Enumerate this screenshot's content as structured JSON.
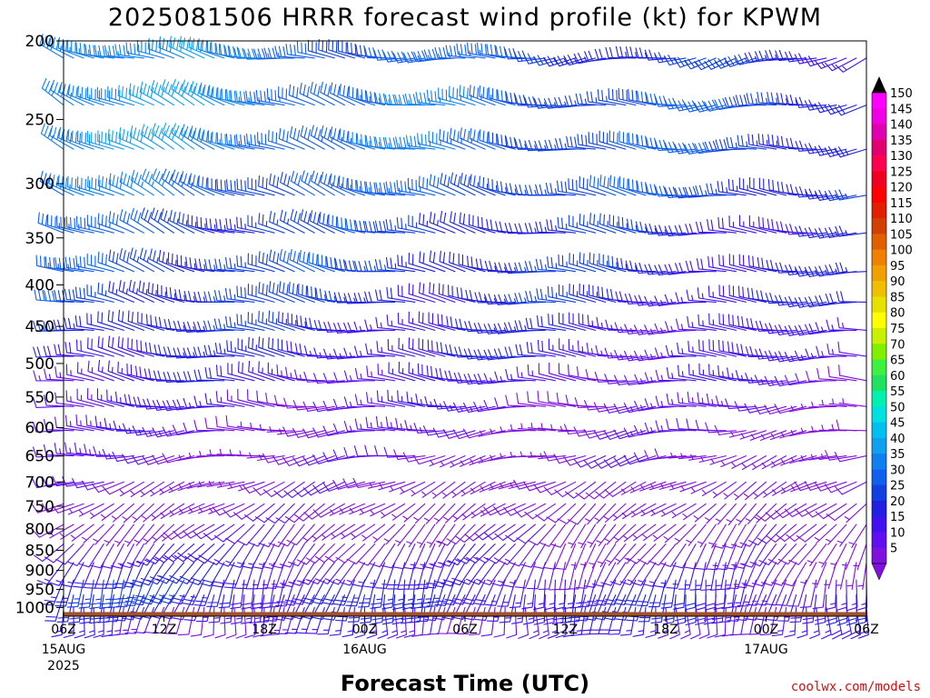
{
  "title": "2025081506 HRRR forecast wind profile (kt) for KPWM",
  "xlabel": "Forecast Time (UTC)",
  "credit": "coolwx.com/models",
  "chart_data": {
    "type": "wind_barb_time_height",
    "title": "2025081506 HRRR forecast wind profile (kt) for KPWM",
    "xlabel": "Forecast Time (UTC)",
    "ylabel": "",
    "y_axis": {
      "type": "pressure_log_reversed",
      "ticks": [
        200,
        250,
        300,
        350,
        400,
        450,
        500,
        550,
        600,
        650,
        700,
        750,
        800,
        850,
        900,
        950,
        1000
      ],
      "range": [
        200,
        1025
      ]
    },
    "x_axis": {
      "range_hours": [
        0,
        48
      ],
      "ticks": [
        {
          "hour": 0,
          "label": "06Z",
          "sub": "15AUG",
          "sub2": "2025"
        },
        {
          "hour": 6,
          "label": "12Z",
          "sub": "",
          "sub2": ""
        },
        {
          "hour": 12,
          "label": "18Z",
          "sub": "",
          "sub2": ""
        },
        {
          "hour": 18,
          "label": "00Z",
          "sub": "16AUG",
          "sub2": ""
        },
        {
          "hour": 24,
          "label": "06Z",
          "sub": "",
          "sub2": ""
        },
        {
          "hour": 30,
          "label": "12Z",
          "sub": "",
          "sub2": ""
        },
        {
          "hour": 36,
          "label": "18Z",
          "sub": "",
          "sub2": ""
        },
        {
          "hour": 42,
          "label": "00Z",
          "sub": "17AUG",
          "sub2": ""
        },
        {
          "hour": 48,
          "label": "06Z",
          "sub": "",
          "sub2": ""
        }
      ]
    },
    "colorbar": {
      "labels": [
        150,
        145,
        140,
        135,
        130,
        125,
        120,
        115,
        110,
        105,
        100,
        95,
        90,
        85,
        80,
        75,
        70,
        65,
        60,
        55,
        50,
        45,
        40,
        35,
        30,
        25,
        20,
        15,
        10,
        5
      ],
      "colors": [
        "#ff00ff",
        "#f000e0",
        "#e000b0",
        "#e00070",
        "#ff0050",
        "#f00020",
        "#ff0000",
        "#e02000",
        "#d04000",
        "#e06000",
        "#f08000",
        "#f0a000",
        "#f0c000",
        "#e8e000",
        "#ffff00",
        "#c8f000",
        "#80f000",
        "#40f040",
        "#20e060",
        "#00f0b0",
        "#00e0e0",
        "#00c0f0",
        "#10a0f0",
        "#1080f0",
        "#1060f0",
        "#1040e0",
        "#2020e0",
        "#4010f0",
        "#6010f0",
        "#8010e0"
      ]
    },
    "barb_hours": [
      0,
      0.6,
      1.2,
      1.8,
      2.4,
      3,
      3.6,
      4.2,
      4.8,
      5.4,
      6,
      6.6,
      7.2,
      7.8,
      8.4,
      9,
      9.6,
      10.2,
      10.8,
      11.4,
      12,
      12.6,
      13.2,
      13.8,
      14.4,
      15,
      15.6,
      16.2,
      16.8,
      17.4,
      18,
      18.6,
      19.2,
      19.8,
      20.4,
      21,
      21.6,
      22.2,
      22.8,
      23.4,
      24,
      24.6,
      25.2,
      25.8,
      26.4,
      27,
      27.6,
      28.2,
      28.8,
      29.4,
      30,
      30.6,
      31.2,
      31.8,
      32.4,
      33,
      33.6,
      34.2,
      34.8,
      35.4,
      36,
      36.6,
      37.2,
      37.8,
      38.4,
      39,
      39.6,
      40.2,
      40.8,
      41.4,
      42,
      42.6,
      43.2,
      43.8,
      44.4,
      45,
      45.6,
      46.2,
      46.8,
      47.4,
      48
    ],
    "levels": [
      {
        "p": 210,
        "dir_start": 290,
        "dir_end": 250,
        "spd_start": 40,
        "spd_end": 20
      },
      {
        "p": 240,
        "dir_start": 300,
        "dir_end": 260,
        "spd_start": 40,
        "spd_end": 25
      },
      {
        "p": 272,
        "dir_start": 300,
        "dir_end": 265,
        "spd_start": 40,
        "spd_end": 25
      },
      {
        "p": 310,
        "dir_start": 300,
        "dir_end": 270,
        "spd_start": 35,
        "spd_end": 25
      },
      {
        "p": 345,
        "dir_start": 295,
        "dir_end": 270,
        "spd_start": 30,
        "spd_end": 20
      },
      {
        "p": 385,
        "dir_start": 290,
        "dir_end": 270,
        "spd_start": 30,
        "spd_end": 20
      },
      {
        "p": 420,
        "dir_start": 285,
        "dir_end": 270,
        "spd_start": 28,
        "spd_end": 18
      },
      {
        "p": 455,
        "dir_start": 280,
        "dir_end": 270,
        "spd_start": 25,
        "spd_end": 15
      },
      {
        "p": 490,
        "dir_start": 280,
        "dir_end": 270,
        "spd_start": 22,
        "spd_end": 15
      },
      {
        "p": 525,
        "dir_start": 280,
        "dir_end": 270,
        "spd_start": 18,
        "spd_end": 12
      },
      {
        "p": 565,
        "dir_start": 275,
        "dir_end": 265,
        "spd_start": 15,
        "spd_end": 10
      },
      {
        "p": 605,
        "dir_start": 270,
        "dir_end": 260,
        "spd_start": 12,
        "spd_end": 8
      },
      {
        "p": 650,
        "dir_start": 265,
        "dir_end": 250,
        "spd_start": 10,
        "spd_end": 6
      },
      {
        "p": 700,
        "dir_start": 250,
        "dir_end": 240,
        "spd_start": 8,
        "spd_end": 5
      },
      {
        "p": 745,
        "dir_start": 240,
        "dir_end": 230,
        "spd_start": 7,
        "spd_end": 5
      },
      {
        "p": 790,
        "dir_start": 230,
        "dir_end": 220,
        "spd_start": 8,
        "spd_end": 6
      },
      {
        "p": 835,
        "dir_start": 220,
        "dir_end": 210,
        "spd_start": 15,
        "spd_end": 8
      },
      {
        "p": 880,
        "dir_start": 210,
        "dir_end": 200,
        "spd_start": 20,
        "spd_end": 10
      },
      {
        "p": 925,
        "dir_start": 200,
        "dir_end": 190,
        "spd_start": 25,
        "spd_end": 15
      },
      {
        "p": 965,
        "dir_start": 200,
        "dir_end": 190,
        "spd_start": 20,
        "spd_end": 20
      },
      {
        "p": 1000,
        "dir_start": 190,
        "dir_end": 180,
        "spd_start": 12,
        "spd_end": 15
      }
    ],
    "surface_pressure_hpa": 1013,
    "surface_color": "#a0522d"
  }
}
